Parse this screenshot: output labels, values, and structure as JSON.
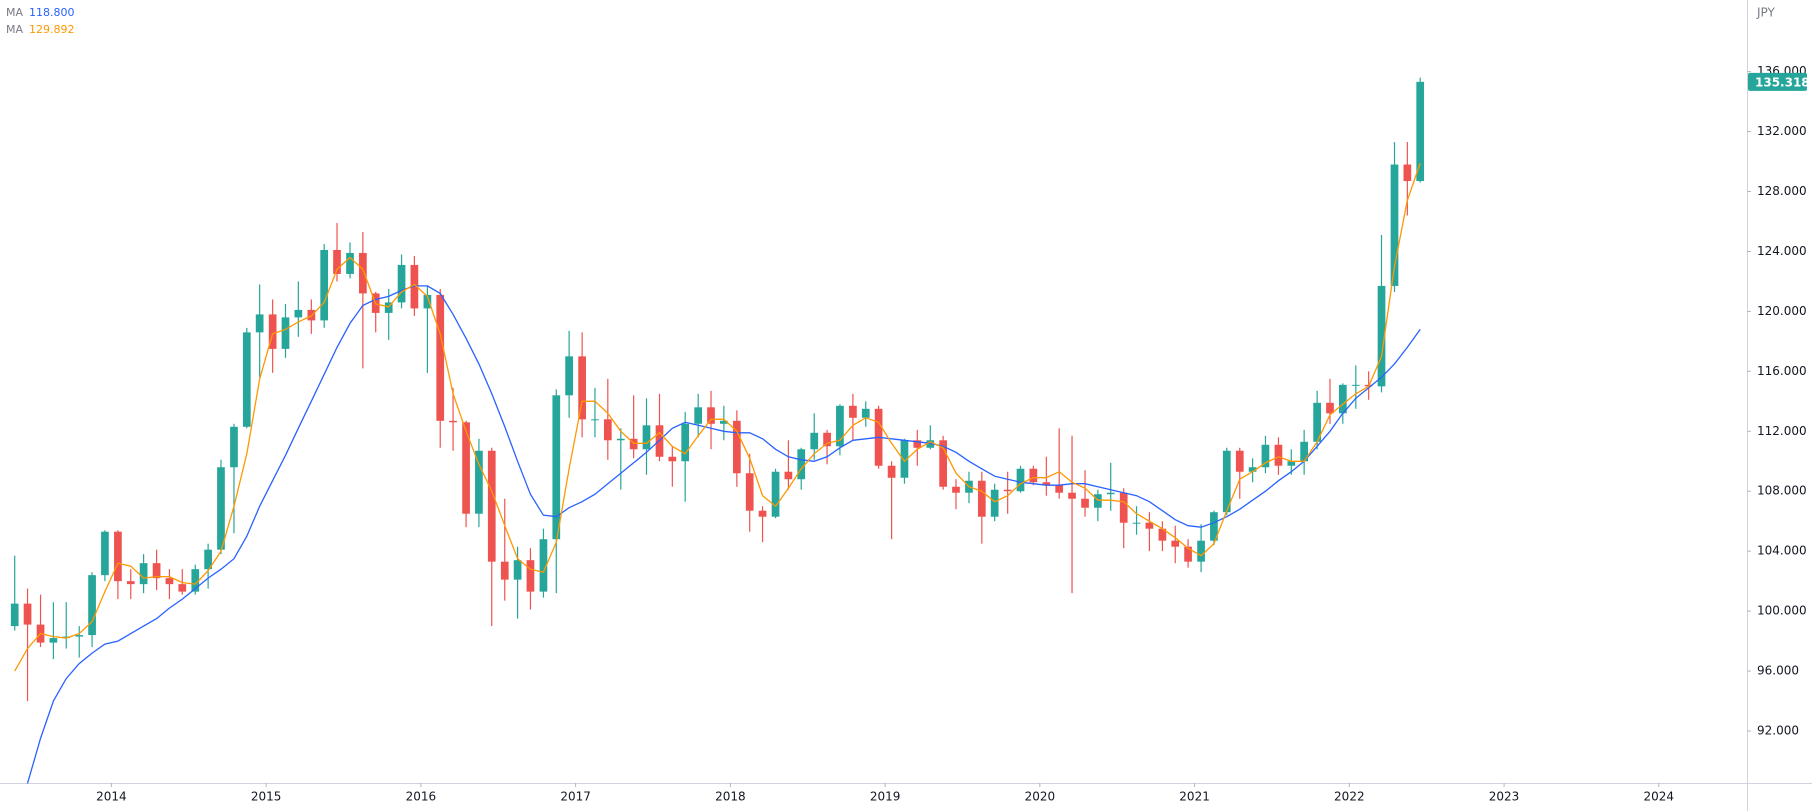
{
  "chart_data": {
    "type": "candlestick",
    "currency": "JPY",
    "last_price_label": "135.318",
    "up_color": "#26a69a",
    "down_color": "#ef5350",
    "grid": false,
    "xlim": [
      2013.28,
      2024.57
    ],
    "xticks": [
      2014,
      2015,
      2016,
      2017,
      2018,
      2019,
      2020,
      2021,
      2022,
      2023,
      2024
    ],
    "ylim": [
      88.53,
      140.78
    ],
    "yticks": [
      {
        "value": 92,
        "label": "92.000"
      },
      {
        "value": 96,
        "label": "96.000"
      },
      {
        "value": 100,
        "label": "100.000"
      },
      {
        "value": 104,
        "label": "104.000"
      },
      {
        "value": 108,
        "label": "108.000"
      },
      {
        "value": 112,
        "label": "112.000"
      },
      {
        "value": 116,
        "label": "116.000"
      },
      {
        "value": 120,
        "label": "120.000"
      },
      {
        "value": 124,
        "label": "124.000"
      },
      {
        "value": 128,
        "label": "128.000"
      },
      {
        "value": 132,
        "label": "132.000"
      },
      {
        "value": 136,
        "label": "136.000"
      }
    ],
    "candles": {
      "x": [
        2013.375,
        2013.458,
        2013.542,
        2013.625,
        2013.708,
        2013.792,
        2013.875,
        2013.958,
        2014.042,
        2014.125,
        2014.208,
        2014.292,
        2014.375,
        2014.458,
        2014.542,
        2014.625,
        2014.708,
        2014.792,
        2014.875,
        2014.958,
        2015.042,
        2015.125,
        2015.208,
        2015.292,
        2015.375,
        2015.458,
        2015.542,
        2015.625,
        2015.708,
        2015.792,
        2015.875,
        2015.958,
        2016.042,
        2016.125,
        2016.208,
        2016.292,
        2016.375,
        2016.458,
        2016.542,
        2016.625,
        2016.708,
        2016.792,
        2016.875,
        2016.958,
        2017.042,
        2017.125,
        2017.208,
        2017.292,
        2017.375,
        2017.458,
        2017.542,
        2017.625,
        2017.708,
        2017.792,
        2017.875,
        2017.958,
        2018.042,
        2018.125,
        2018.208,
        2018.292,
        2018.375,
        2018.458,
        2018.542,
        2018.625,
        2018.708,
        2018.792,
        2018.875,
        2018.958,
        2019.042,
        2019.125,
        2019.208,
        2019.292,
        2019.375,
        2019.458,
        2019.542,
        2019.625,
        2019.708,
        2019.792,
        2019.875,
        2019.958,
        2020.042,
        2020.125,
        2020.208,
        2020.292,
        2020.375,
        2020.458,
        2020.542,
        2020.625,
        2020.708,
        2020.792,
        2020.875,
        2020.958,
        2021.042,
        2021.125,
        2021.208,
        2021.292,
        2021.375,
        2021.458,
        2021.542,
        2021.625,
        2021.708,
        2021.792,
        2021.875,
        2021.958,
        2022.042,
        2022.125,
        2022.208,
        2022.292,
        2022.375,
        2022.458
      ],
      "open": [
        99.0,
        100.5,
        99.1,
        97.9,
        98.2,
        98.3,
        98.4,
        102.4,
        105.3,
        102.0,
        101.8,
        103.2,
        102.2,
        101.8,
        101.3,
        102.8,
        104.1,
        109.6,
        112.3,
        118.6,
        119.8,
        117.5,
        119.6,
        120.1,
        119.4,
        124.1,
        122.5,
        123.9,
        121.2,
        119.9,
        120.6,
        123.1,
        120.2,
        121.1,
        112.7,
        112.6,
        106.5,
        110.7,
        103.3,
        102.1,
        103.4,
        101.3,
        104.8,
        114.4,
        117.0,
        112.8,
        112.8,
        111.4,
        111.5,
        110.8,
        112.4,
        110.3,
        110.0,
        112.5,
        113.6,
        112.5,
        112.7,
        109.2,
        106.7,
        106.3,
        109.3,
        108.8,
        110.8,
        111.9,
        111.0,
        113.7,
        112.9,
        113.5,
        109.7,
        108.9,
        111.4,
        110.9,
        111.4,
        108.3,
        107.9,
        108.7,
        106.3,
        108.1,
        108.0,
        109.5,
        108.6,
        108.4,
        107.9,
        107.5,
        106.9,
        107.8,
        107.9,
        105.9,
        105.9,
        105.5,
        104.7,
        104.3,
        103.3,
        104.7,
        106.6,
        110.7,
        109.3,
        109.6,
        111.1,
        109.7,
        110.0,
        111.3,
        113.9,
        113.2,
        115.1,
        115.1,
        115.0,
        121.7,
        129.8,
        128.7
      ],
      "high": [
        103.7,
        101.5,
        101.1,
        100.6,
        100.6,
        99.0,
        102.6,
        105.4,
        105.4,
        102.8,
        103.8,
        104.1,
        102.8,
        102.8,
        103.1,
        104.5,
        110.1,
        112.5,
        118.9,
        121.8,
        120.8,
        120.5,
        122.0,
        120.8,
        124.5,
        125.9,
        124.6,
        125.3,
        121.3,
        121.5,
        123.8,
        123.7,
        121.7,
        121.5,
        114.9,
        112.7,
        111.5,
        110.9,
        107.5,
        104.3,
        104.2,
        105.5,
        114.8,
        118.7,
        118.6,
        114.9,
        115.5,
        112.2,
        114.4,
        114.2,
        114.5,
        111.0,
        113.3,
        114.5,
        114.7,
        113.7,
        113.4,
        110.5,
        107.0,
        109.5,
        111.4,
        110.9,
        113.2,
        112.1,
        113.8,
        114.5,
        114.0,
        113.7,
        110.0,
        111.5,
        112.1,
        112.4,
        111.7,
        108.8,
        109.3,
        109.3,
        108.5,
        109.3,
        109.7,
        109.7,
        110.3,
        112.2,
        111.7,
        109.4,
        108.1,
        109.9,
        108.2,
        107.0,
        106.6,
        106.0,
        105.7,
        104.8,
        105.8,
        106.7,
        110.9,
        110.9,
        110.2,
        111.7,
        111.6,
        110.8,
        112.1,
        114.7,
        115.5,
        115.2,
        116.4,
        116.0,
        125.1,
        131.3,
        131.3,
        135.6
      ],
      "low": [
        98.7,
        94.0,
        97.6,
        96.8,
        97.5,
        96.9,
        97.6,
        102.0,
        100.8,
        100.8,
        101.2,
        101.4,
        100.8,
        101.1,
        101.1,
        101.5,
        103.8,
        105.2,
        112.2,
        115.6,
        115.9,
        116.9,
        118.3,
        118.5,
        118.9,
        122.0,
        122.2,
        116.2,
        118.6,
        118.1,
        120.2,
        119.7,
        115.9,
        110.9,
        110.7,
        105.6,
        105.6,
        99.0,
        100.7,
        99.5,
        100.1,
        100.9,
        101.2,
        112.9,
        111.6,
        111.6,
        110.1,
        108.1,
        110.2,
        109.1,
        110.0,
        108.3,
        107.3,
        111.6,
        110.8,
        111.4,
        108.3,
        105.3,
        104.6,
        106.2,
        108.1,
        108.1,
        110.1,
        109.8,
        110.4,
        111.4,
        112.3,
        109.5,
        104.8,
        108.5,
        109.7,
        110.8,
        108.1,
        106.8,
        107.2,
        104.5,
        106.0,
        106.5,
        107.9,
        108.4,
        107.7,
        107.5,
        101.2,
        106.3,
        106.0,
        106.7,
        104.2,
        105.1,
        104.0,
        104.0,
        103.2,
        102.9,
        102.6,
        104.4,
        106.4,
        107.5,
        108.6,
        109.2,
        109.1,
        109.1,
        109.1,
        110.8,
        112.5,
        112.5,
        113.5,
        114.1,
        114.6,
        121.3,
        126.4,
        128.6
      ],
      "close": [
        100.5,
        99.1,
        97.9,
        98.2,
        98.3,
        98.4,
        102.4,
        105.3,
        102.0,
        101.8,
        103.2,
        102.2,
        101.8,
        101.3,
        102.8,
        104.1,
        109.6,
        112.3,
        118.6,
        119.8,
        117.5,
        119.6,
        120.1,
        119.4,
        124.1,
        122.5,
        123.9,
        121.2,
        119.9,
        120.6,
        123.1,
        120.2,
        121.1,
        112.7,
        112.6,
        106.5,
        110.7,
        103.3,
        102.1,
        103.4,
        101.3,
        104.8,
        114.4,
        117.0,
        112.8,
        112.8,
        111.4,
        111.5,
        110.8,
        112.4,
        110.3,
        110.0,
        112.5,
        113.6,
        112.5,
        112.7,
        109.2,
        106.7,
        106.3,
        109.3,
        108.8,
        110.8,
        111.9,
        111.0,
        113.7,
        112.9,
        113.5,
        109.7,
        108.9,
        111.4,
        110.9,
        111.4,
        108.3,
        107.9,
        108.7,
        106.3,
        108.1,
        108.0,
        109.5,
        108.6,
        108.4,
        107.9,
        107.5,
        106.9,
        107.8,
        107.9,
        105.9,
        105.9,
        105.5,
        104.7,
        104.3,
        103.3,
        104.7,
        106.6,
        110.7,
        109.3,
        109.6,
        111.1,
        109.7,
        110.0,
        111.3,
        113.9,
        113.2,
        115.1,
        115.1,
        115.0,
        121.7,
        129.8,
        128.7,
        135.318
      ]
    },
    "series": [
      {
        "name": "MA",
        "color": "#2962ff",
        "value_label": "118.800",
        "values": [
          null,
          88.5,
          91.5,
          94.0,
          95.5,
          96.5,
          97.2,
          97.8,
          98.0,
          98.5,
          99.0,
          99.5,
          100.2,
          100.8,
          101.5,
          102.2,
          102.8,
          103.5,
          105.0,
          107.0,
          108.7,
          110.4,
          112.2,
          114.0,
          115.8,
          117.6,
          119.2,
          120.4,
          120.8,
          121.0,
          121.4,
          121.7,
          121.7,
          121.2,
          119.8,
          118.2,
          116.5,
          114.5,
          112.3,
          110.0,
          107.8,
          106.4,
          106.3,
          106.9,
          107.3,
          107.8,
          108.5,
          109.2,
          109.9,
          110.6,
          111.4,
          112.2,
          112.6,
          112.4,
          112.2,
          112.0,
          111.9,
          111.9,
          111.5,
          110.8,
          110.3,
          110.1,
          110.0,
          110.3,
          110.9,
          111.4,
          111.5,
          111.6,
          111.5,
          111.4,
          111.3,
          111.2,
          111.0,
          110.6,
          110.0,
          109.5,
          109.0,
          108.8,
          108.6,
          108.5,
          108.4,
          108.4,
          108.5,
          108.5,
          108.3,
          108.1,
          107.9,
          107.7,
          107.3,
          106.7,
          106.1,
          105.7,
          105.6,
          105.9,
          106.3,
          106.8,
          107.4,
          108.0,
          108.7,
          109.3,
          110.0,
          111.0,
          112.0,
          113.2,
          114.2,
          114.9,
          115.6,
          116.5,
          117.6,
          118.8
        ]
      },
      {
        "name": "MA",
        "color": "#ff9800",
        "value_label": "129.892",
        "values": [
          96.0,
          97.5,
          98.5,
          98.3,
          98.2,
          98.5,
          99.3,
          101.3,
          103.2,
          103.0,
          102.2,
          102.3,
          102.3,
          101.9,
          101.8,
          102.7,
          104.0,
          107.0,
          110.5,
          115.5,
          118.5,
          118.8,
          119.3,
          119.7,
          120.6,
          122.8,
          123.6,
          122.8,
          120.5,
          120.3,
          121.3,
          121.8,
          121.0,
          118.5,
          114.5,
          112.0,
          109.8,
          108.0,
          105.7,
          103.5,
          102.8,
          102.6,
          104.6,
          109.5,
          114.0,
          114.0,
          113.2,
          112.0,
          111.2,
          111.2,
          111.9,
          111.0,
          110.5,
          111.7,
          112.8,
          112.8,
          112.0,
          110.2,
          107.7,
          107.0,
          108.2,
          109.5,
          110.5,
          111.2,
          111.4,
          112.4,
          112.9,
          112.6,
          111.2,
          110.0,
          110.8,
          111.3,
          110.9,
          109.2,
          108.3,
          108.0,
          107.3,
          107.7,
          108.5,
          108.9,
          108.9,
          109.3,
          108.6,
          108.2,
          107.4,
          107.4,
          107.3,
          106.5,
          106.0,
          105.5,
          104.9,
          104.2,
          103.7,
          104.5,
          106.7,
          108.8,
          109.3,
          109.9,
          110.3,
          110.0,
          110.0,
          111.3,
          113.1,
          113.8,
          114.5,
          115.0,
          117.0,
          123.0,
          127.4,
          129.892
        ]
      }
    ]
  }
}
